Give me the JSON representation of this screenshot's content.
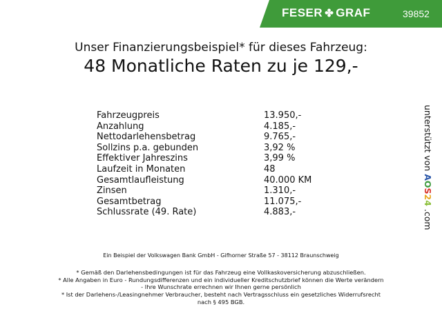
{
  "header": {
    "brand_left": "FESER",
    "brand_right": "GRAF",
    "brand_icon": "clover-icon",
    "code": "39852",
    "color": "#3f9b3a"
  },
  "title": {
    "line1": "Unser Finanzierungsbeispiel* für dieses Fahrzeug:",
    "line2": "48 Monatliche Raten zu je 129,-"
  },
  "rows": [
    {
      "label": "Fahrzeugpreis",
      "value": "13.950,-"
    },
    {
      "label": "Anzahlung",
      "value": "4.185,-"
    },
    {
      "label": "Nettodarlehensbetrag",
      "value": "9.765,-"
    },
    {
      "label": "Sollzins p.a. gebunden",
      "value": "3,92 %"
    },
    {
      "label": "Effektiver Jahreszins",
      "value": "3,99 %"
    },
    {
      "label": "Laufzeit in Monaten",
      "value": "48"
    },
    {
      "label": "Gesamtlaufleistung",
      "value": "40.000 KM"
    },
    {
      "label": "Zinsen",
      "value": "1.310,-"
    },
    {
      "label": "Gesamtbetrag",
      "value": "11.075,-"
    },
    {
      "label": "Schlussrate (49. Rate)",
      "value": "4.883,-"
    }
  ],
  "side": {
    "prefix": "unterstützt von",
    "logo": "AOS24",
    "suffix": ".com"
  },
  "footer": {
    "bank": "Ein Beispiel der Volkswagen Bank GmbH - Gifhorner Straße 57 - 38112 Braunschweig",
    "notes": [
      "* Gemäß den Darlehensbedingungen ist für das Fahrzeug eine Vollkaskoversicherung abzuschließen.",
      "* Alle Angaben in Euro - Rundungsdifferenzen und ein individueller Kreditschutzbrief können die Werte verändern",
      "- Ihre Wunschrate errechnen wir Ihnen gerne persönlich",
      "* Ist der Darlehens-/Leasingnehmer Verbraucher, besteht nach Vertragsschluss ein gesetzliches Widerrufsrecht",
      "nach § 495 BGB."
    ]
  }
}
